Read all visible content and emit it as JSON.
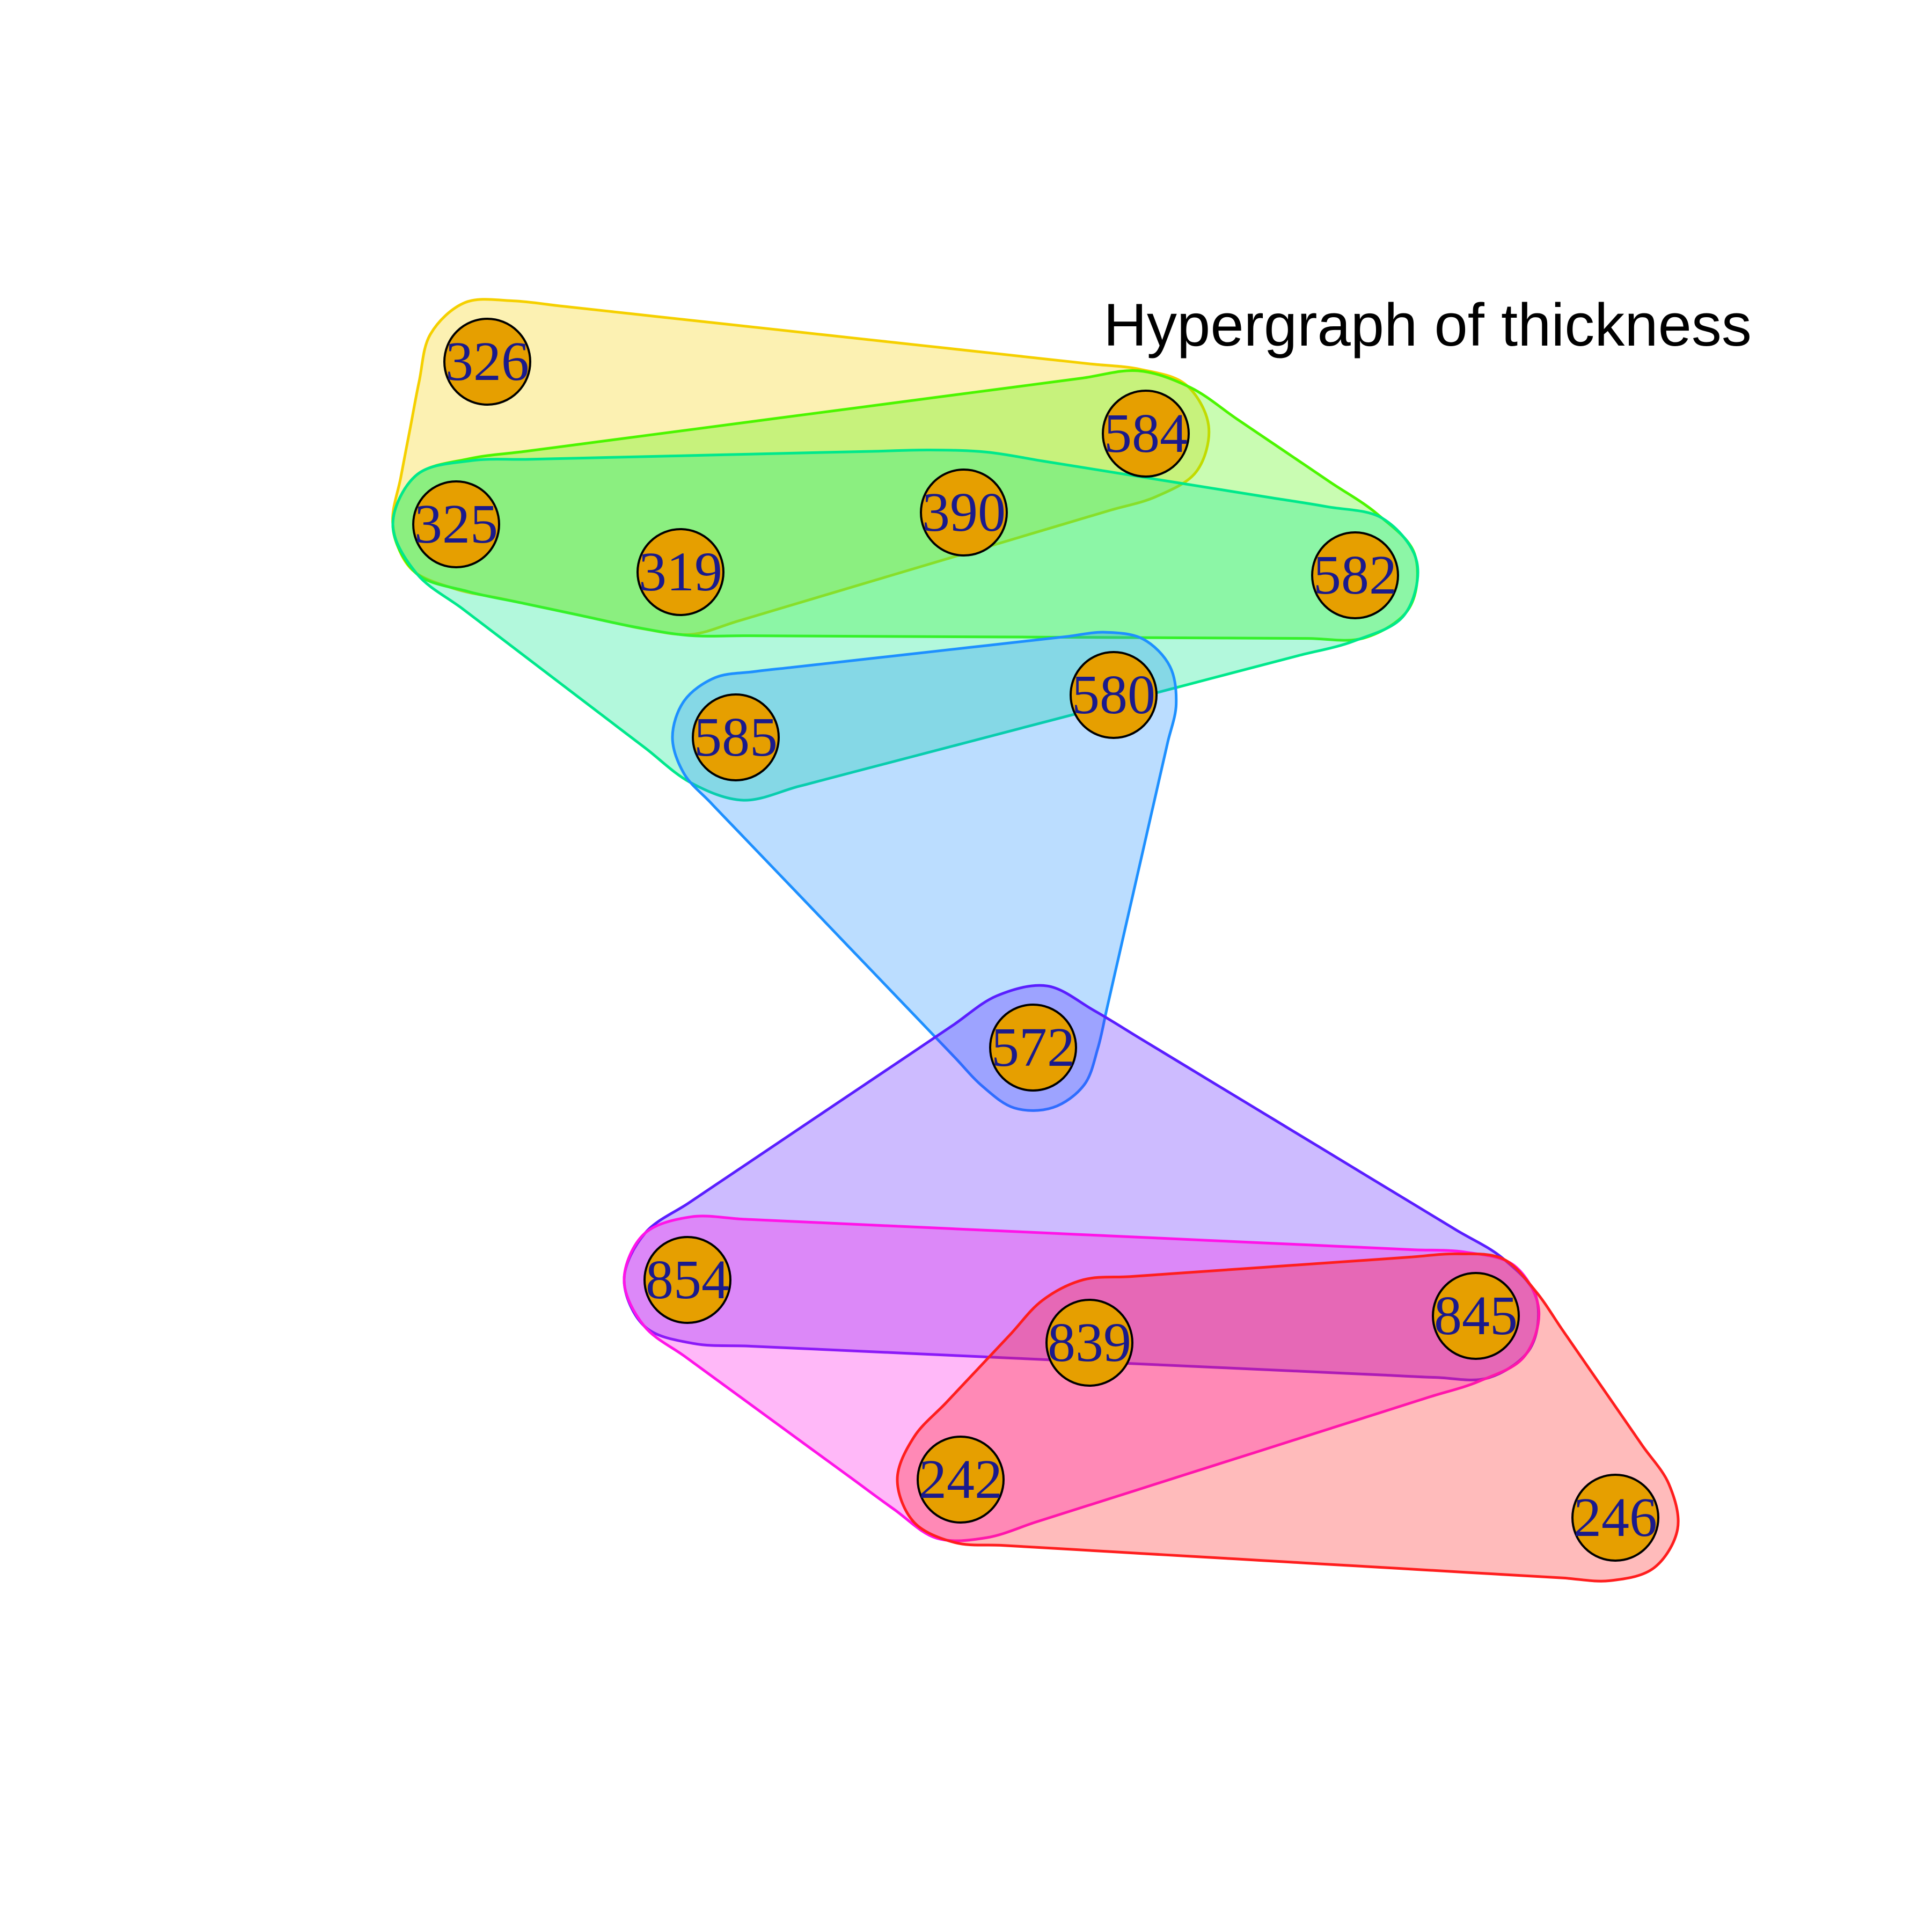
{
  "title": "Hypergraph of thickness",
  "colors": {
    "node_fill": "#E69F00",
    "node_stroke": "#000000",
    "label": "#1A1A8C"
  },
  "nodes": [
    {
      "id": "326",
      "label": "326"
    },
    {
      "id": "584",
      "label": "584"
    },
    {
      "id": "325",
      "label": "325"
    },
    {
      "id": "390",
      "label": "390"
    },
    {
      "id": "319",
      "label": "319"
    },
    {
      "id": "582",
      "label": "582"
    },
    {
      "id": "580",
      "label": "580"
    },
    {
      "id": "585",
      "label": "585"
    },
    {
      "id": "572",
      "label": "572"
    },
    {
      "id": "854",
      "label": "854"
    },
    {
      "id": "845",
      "label": "845"
    },
    {
      "id": "839",
      "label": "839"
    },
    {
      "id": "242",
      "label": "242"
    },
    {
      "id": "246",
      "label": "246"
    }
  ],
  "hyperedges": [
    {
      "members": [
        "326",
        "584",
        "325",
        "319"
      ],
      "color": "#F5D000"
    },
    {
      "members": [
        "584",
        "325",
        "319",
        "582"
      ],
      "color": "#4CF500"
    },
    {
      "members": [
        "325",
        "390",
        "582",
        "585"
      ],
      "color": "#00E88C"
    },
    {
      "members": [
        "585",
        "580",
        "572"
      ],
      "color": "#1E90FF"
    },
    {
      "members": [
        "572",
        "854",
        "845"
      ],
      "color": "#5A1EFF"
    },
    {
      "members": [
        "854",
        "845",
        "242"
      ],
      "color": "#FF14E8"
    },
    {
      "members": [
        "839",
        "845",
        "242",
        "246"
      ],
      "color": "#FF1E1E"
    }
  ]
}
